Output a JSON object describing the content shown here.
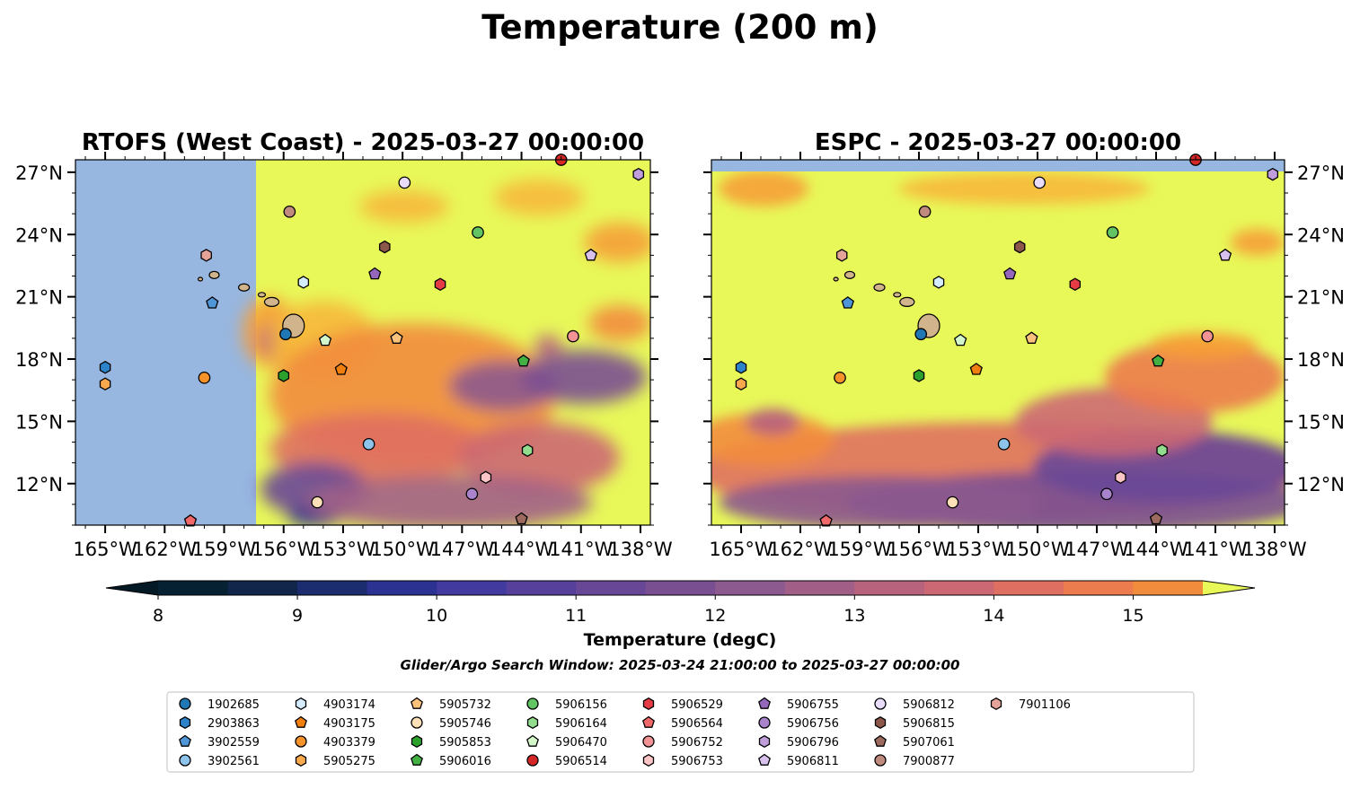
{
  "suptitle": "Temperature (200 m)",
  "panels": [
    {
      "title": "RTOFS (West Coast) - 2025-03-27 00:00:00",
      "ytick_side": "left"
    },
    {
      "title": "ESPC - 2025-03-27 00:00:00",
      "ytick_side": "right"
    }
  ],
  "colors": {
    "land_mask": "#97b6e0",
    "warm": "#e8f859",
    "island": "#d2b48c"
  },
  "chart_data": {
    "type": "heatmap",
    "map_extent": {
      "lon": [
        -166.5,
        -137.5
      ],
      "lat": [
        10,
        27.6
      ]
    },
    "x_ticks": [
      {
        "lon": -165,
        "label": "165°W"
      },
      {
        "lon": -162,
        "label": "162°W"
      },
      {
        "lon": -159,
        "label": "159°W"
      },
      {
        "lon": -156,
        "label": "156°W"
      },
      {
        "lon": -153,
        "label": "153°W"
      },
      {
        "lon": -150,
        "label": "150°W"
      },
      {
        "lon": -147,
        "label": "147°W"
      },
      {
        "lon": -144,
        "label": "144°W"
      },
      {
        "lon": -141,
        "label": "141°W"
      },
      {
        "lon": -138,
        "label": "138°W"
      }
    ],
    "y_ticks": [
      {
        "lat": 27,
        "label": "27°N"
      },
      {
        "lat": 24,
        "label": "24°N"
      },
      {
        "lat": 21,
        "label": "21°N"
      },
      {
        "lat": 18,
        "label": "18°N"
      },
      {
        "lat": 15,
        "label": "15°N"
      },
      {
        "lat": 12,
        "label": "12°N"
      }
    ],
    "colorbar": {
      "label": "Temperature (degC)",
      "vmin": 8,
      "vmax": 15.5,
      "step": 0.5,
      "extend": "both",
      "ticks": [
        8,
        9,
        10,
        11,
        12,
        13,
        14,
        15
      ],
      "colors": [
        "#062131",
        "#11264a",
        "#1b2c6f",
        "#2b3291",
        "#423a9e",
        "#56409c",
        "#694797",
        "#7a4f92",
        "#8c5a8e",
        "#a15f87",
        "#b7637e",
        "#cc6873",
        "#df7061",
        "#ec7c4e",
        "#f28c3d",
        "#f6a036",
        "#f7b83c",
        "#f3d54a",
        "#e8f859"
      ],
      "under_color": "#031a26",
      "over_color": "#e8f859"
    },
    "search_window": "Glider/Argo Search Window: 2025-03-24 21:00:00 to 2025-03-27 00:00:00",
    "platforms": [
      {
        "id": "1902685",
        "marker": "circle",
        "color": "#1f77b4",
        "lon": -155.9,
        "lat": 19.2
      },
      {
        "id": "2903863",
        "marker": "hexagon",
        "color": "#2c83c9",
        "lon": -165.0,
        "lat": 17.6
      },
      {
        "id": "3902559",
        "marker": "pentagon",
        "color": "#4f96d8",
        "lon": -159.6,
        "lat": 20.7
      },
      {
        "id": "3902561",
        "marker": "circle",
        "color": "#8ec3ec",
        "lon": -151.7,
        "lat": 13.9
      },
      {
        "id": "4903174",
        "marker": "hexagon",
        "color": "#d4ecfb",
        "lon": -155.0,
        "lat": 21.7
      },
      {
        "id": "4903175",
        "marker": "pentagon",
        "color": "#f07f0f",
        "lon": -153.1,
        "lat": 17.5
      },
      {
        "id": "4903379",
        "marker": "circle",
        "color": "#f5922a",
        "lon": -160.0,
        "lat": 17.1
      },
      {
        "id": "5905275",
        "marker": "hexagon",
        "color": "#f8a94d",
        "lon": -165.0,
        "lat": 16.8
      },
      {
        "id": "5905732",
        "marker": "pentagon",
        "color": "#fbc27d",
        "lon": -150.3,
        "lat": 19.0
      },
      {
        "id": "5905746",
        "marker": "circle",
        "color": "#fde0b8",
        "lon": -154.3,
        "lat": 11.1
      },
      {
        "id": "5905853",
        "marker": "hexagon",
        "color": "#2ca02c",
        "lon": -156.0,
        "lat": 17.2
      },
      {
        "id": "5906016",
        "marker": "pentagon",
        "color": "#43b043",
        "lon": -143.9,
        "lat": 17.9
      },
      {
        "id": "5906156",
        "marker": "circle",
        "color": "#63c463",
        "lon": -146.2,
        "lat": 24.1
      },
      {
        "id": "5906164",
        "marker": "hexagon",
        "color": "#92dc8e",
        "lon": -143.7,
        "lat": 13.6
      },
      {
        "id": "5906470",
        "marker": "pentagon",
        "color": "#d3f7cb",
        "lon": -153.9,
        "lat": 18.9
      },
      {
        "id": "5906514",
        "marker": "circle",
        "color": "#d62728",
        "lon": -142.0,
        "lat": 27.6
      },
      {
        "id": "5906529",
        "marker": "hexagon",
        "color": "#e43b45",
        "lon": -148.1,
        "lat": 21.6
      },
      {
        "id": "5906564",
        "marker": "pentagon",
        "color": "#f0686a",
        "lon": -160.7,
        "lat": 10.2
      },
      {
        "id": "5906752",
        "marker": "circle",
        "color": "#f49396",
        "lon": -141.4,
        "lat": 19.1
      },
      {
        "id": "5906753",
        "marker": "hexagon",
        "color": "#fbc4c6",
        "lon": -145.8,
        "lat": 12.3
      },
      {
        "id": "5906755",
        "marker": "pentagon",
        "color": "#9467bd",
        "lon": -151.4,
        "lat": 22.1
      },
      {
        "id": "5906756",
        "marker": "circle",
        "color": "#a983cc",
        "lon": -146.5,
        "lat": 11.5
      },
      {
        "id": "5906796",
        "marker": "hexagon",
        "color": "#c09edb",
        "lon": -138.1,
        "lat": 26.9
      },
      {
        "id": "5906811",
        "marker": "pentagon",
        "color": "#d8c1ec",
        "lon": -140.5,
        "lat": 23.0
      },
      {
        "id": "5906812",
        "marker": "circle",
        "color": "#e8dcf8",
        "lon": -149.9,
        "lat": 26.5
      },
      {
        "id": "5906815",
        "marker": "hexagon",
        "color": "#8c564b",
        "lon": -150.9,
        "lat": 23.4
      },
      {
        "id": "5907061",
        "marker": "pentagon",
        "color": "#9d6a5f",
        "lon": -144.0,
        "lat": 10.3
      },
      {
        "id": "7900877",
        "marker": "circle",
        "color": "#c08a7e",
        "lon": -155.7,
        "lat": 25.1
      },
      {
        "id": "7901106",
        "marker": "hexagon",
        "color": "#e6a39a",
        "lon": -159.9,
        "lat": 23.0
      }
    ]
  }
}
